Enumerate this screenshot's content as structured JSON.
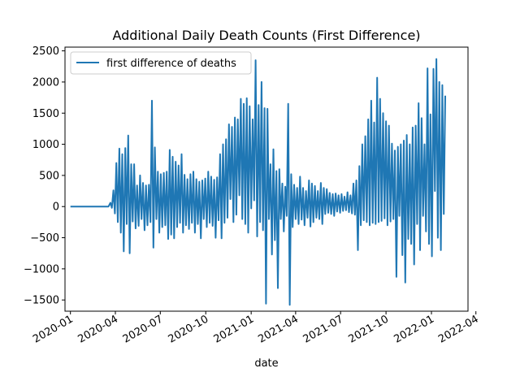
{
  "chart_data": {
    "type": "line",
    "title": "Additional Daily Death Counts (First Difference)",
    "xlabel": "date",
    "ylabel": "",
    "x_range": [
      "2019-12-21",
      "2022-03-16"
    ],
    "ylim": [
      -1680,
      2560
    ],
    "x_ticks": [
      {
        "date": "2020-01-01",
        "label": "2020-01"
      },
      {
        "date": "2020-04-01",
        "label": "2020-04"
      },
      {
        "date": "2020-07-01",
        "label": "2020-07"
      },
      {
        "date": "2020-10-01",
        "label": "2020-10"
      },
      {
        "date": "2021-01-01",
        "label": "2021-01"
      },
      {
        "date": "2021-04-01",
        "label": "2021-04"
      },
      {
        "date": "2021-07-01",
        "label": "2021-07"
      },
      {
        "date": "2021-10-01",
        "label": "2021-10"
      },
      {
        "date": "2022-01-01",
        "label": "2022-01"
      },
      {
        "date": "2022-04-01",
        "label": "2022-04"
      }
    ],
    "y_ticks": [
      -1500,
      -1000,
      -500,
      0,
      500,
      1000,
      1500,
      2000,
      2500
    ],
    "legend": {
      "position": "top-left"
    },
    "grid": false,
    "series": [
      {
        "name": "first difference of deaths",
        "color": "#1f77b4",
        "points": [
          [
            "2020-01-01",
            0
          ],
          [
            "2020-02-01",
            0
          ],
          [
            "2020-03-01",
            0
          ],
          [
            "2020-03-18",
            0
          ],
          [
            "2020-03-22",
            60
          ],
          [
            "2020-03-25",
            -20
          ],
          [
            "2020-03-28",
            260
          ],
          [
            "2020-03-31",
            -110
          ],
          [
            "2020-04-03",
            700
          ],
          [
            "2020-04-06",
            -250
          ],
          [
            "2020-04-09",
            930
          ],
          [
            "2020-04-12",
            -420
          ],
          [
            "2020-04-15",
            840
          ],
          [
            "2020-04-18",
            -720
          ],
          [
            "2020-04-21",
            940
          ],
          [
            "2020-04-24",
            -280
          ],
          [
            "2020-04-27",
            1140
          ],
          [
            "2020-04-30",
            -750
          ],
          [
            "2020-05-03",
            680
          ],
          [
            "2020-05-06",
            -240
          ],
          [
            "2020-05-09",
            680
          ],
          [
            "2020-05-12",
            -350
          ],
          [
            "2020-05-15",
            340
          ],
          [
            "2020-05-18",
            -310
          ],
          [
            "2020-05-21",
            500
          ],
          [
            "2020-05-24",
            -200
          ],
          [
            "2020-05-27",
            380
          ],
          [
            "2020-05-30",
            -380
          ],
          [
            "2020-06-02",
            340
          ],
          [
            "2020-06-05",
            -300
          ],
          [
            "2020-06-08",
            350
          ],
          [
            "2020-06-11",
            -250
          ],
          [
            "2020-06-14",
            1700
          ],
          [
            "2020-06-17",
            -660
          ],
          [
            "2020-06-20",
            950
          ],
          [
            "2020-06-23",
            -200
          ],
          [
            "2020-06-26",
            560
          ],
          [
            "2020-06-29",
            -420
          ],
          [
            "2020-07-02",
            520
          ],
          [
            "2020-07-05",
            -330
          ],
          [
            "2020-07-08",
            540
          ],
          [
            "2020-07-11",
            -300
          ],
          [
            "2020-07-14",
            560
          ],
          [
            "2020-07-17",
            -520
          ],
          [
            "2020-07-20",
            910
          ],
          [
            "2020-07-23",
            -450
          ],
          [
            "2020-07-26",
            800
          ],
          [
            "2020-07-29",
            -510
          ],
          [
            "2020-08-01",
            720
          ],
          [
            "2020-08-04",
            -330
          ],
          [
            "2020-08-07",
            660
          ],
          [
            "2020-08-10",
            -260
          ],
          [
            "2020-08-13",
            840
          ],
          [
            "2020-08-16",
            -420
          ],
          [
            "2020-08-19",
            510
          ],
          [
            "2020-08-22",
            -300
          ],
          [
            "2020-08-25",
            440
          ],
          [
            "2020-08-28",
            -360
          ],
          [
            "2020-08-31",
            520
          ],
          [
            "2020-09-03",
            -260
          ],
          [
            "2020-09-06",
            560
          ],
          [
            "2020-09-09",
            -420
          ],
          [
            "2020-09-12",
            440
          ],
          [
            "2020-09-15",
            -280
          ],
          [
            "2020-09-18",
            400
          ],
          [
            "2020-09-21",
            -510
          ],
          [
            "2020-09-24",
            420
          ],
          [
            "2020-09-27",
            -200
          ],
          [
            "2020-09-30",
            450
          ],
          [
            "2020-10-03",
            -330
          ],
          [
            "2020-10-06",
            560
          ],
          [
            "2020-10-09",
            -260
          ],
          [
            "2020-10-12",
            480
          ],
          [
            "2020-10-15",
            -310
          ],
          [
            "2020-10-18",
            430
          ],
          [
            "2020-10-21",
            -500
          ],
          [
            "2020-10-24",
            470
          ],
          [
            "2020-10-27",
            -220
          ],
          [
            "2020-10-30",
            840
          ],
          [
            "2020-11-02",
            -510
          ],
          [
            "2020-11-05",
            1000
          ],
          [
            "2020-11-08",
            -260
          ],
          [
            "2020-11-11",
            1080
          ],
          [
            "2020-11-14",
            -180
          ],
          [
            "2020-11-17",
            1320
          ],
          [
            "2020-11-20",
            120
          ],
          [
            "2020-11-23",
            1280
          ],
          [
            "2020-11-26",
            -250
          ],
          [
            "2020-11-29",
            1430
          ],
          [
            "2020-12-02",
            -130
          ],
          [
            "2020-12-05",
            1400
          ],
          [
            "2020-12-08",
            180
          ],
          [
            "2020-12-11",
            1730
          ],
          [
            "2020-12-14",
            -200
          ],
          [
            "2020-12-17",
            1650
          ],
          [
            "2020-12-20",
            -280
          ],
          [
            "2020-12-23",
            1740
          ],
          [
            "2020-12-26",
            -420
          ],
          [
            "2020-12-29",
            1610
          ],
          [
            "2021-01-01",
            -30
          ],
          [
            "2021-01-04",
            1400
          ],
          [
            "2021-01-07",
            100
          ],
          [
            "2021-01-10",
            2350
          ],
          [
            "2021-01-13",
            -480
          ],
          [
            "2021-01-16",
            1630
          ],
          [
            "2021-01-19",
            -250
          ],
          [
            "2021-01-22",
            2000
          ],
          [
            "2021-01-25",
            -380
          ],
          [
            "2021-01-28",
            1580
          ],
          [
            "2021-01-31",
            -1560
          ],
          [
            "2021-02-03",
            1570
          ],
          [
            "2021-02-06",
            -200
          ],
          [
            "2021-02-09",
            680
          ],
          [
            "2021-02-12",
            -770
          ],
          [
            "2021-02-15",
            920
          ],
          [
            "2021-02-18",
            -540
          ],
          [
            "2021-02-21",
            570
          ],
          [
            "2021-02-24",
            -1310
          ],
          [
            "2021-02-27",
            600
          ],
          [
            "2021-03-02",
            -200
          ],
          [
            "2021-03-05",
            370
          ],
          [
            "2021-03-08",
            -400
          ],
          [
            "2021-03-11",
            320
          ],
          [
            "2021-03-14",
            -150
          ],
          [
            "2021-03-17",
            1650
          ],
          [
            "2021-03-20",
            -1580
          ],
          [
            "2021-03-23",
            520
          ],
          [
            "2021-03-26",
            -330
          ],
          [
            "2021-03-29",
            350
          ],
          [
            "2021-04-01",
            -200
          ],
          [
            "2021-04-04",
            300
          ],
          [
            "2021-04-07",
            -280
          ],
          [
            "2021-04-10",
            480
          ],
          [
            "2021-04-13",
            -210
          ],
          [
            "2021-04-16",
            300
          ],
          [
            "2021-04-19",
            -300
          ],
          [
            "2021-04-22",
            250
          ],
          [
            "2021-04-25",
            -180
          ],
          [
            "2021-04-28",
            420
          ],
          [
            "2021-05-01",
            -320
          ],
          [
            "2021-05-04",
            370
          ],
          [
            "2021-05-07",
            -250
          ],
          [
            "2021-05-10",
            330
          ],
          [
            "2021-05-13",
            -180
          ],
          [
            "2021-05-16",
            250
          ],
          [
            "2021-05-19",
            -200
          ],
          [
            "2021-05-22",
            380
          ],
          [
            "2021-05-25",
            -280
          ],
          [
            "2021-05-28",
            300
          ],
          [
            "2021-05-31",
            -120
          ],
          [
            "2021-06-03",
            280
          ],
          [
            "2021-06-06",
            -100
          ],
          [
            "2021-06-09",
            220
          ],
          [
            "2021-06-12",
            -120
          ],
          [
            "2021-06-15",
            200
          ],
          [
            "2021-06-18",
            -150
          ],
          [
            "2021-06-21",
            210
          ],
          [
            "2021-06-24",
            -80
          ],
          [
            "2021-06-27",
            180
          ],
          [
            "2021-06-30",
            -100
          ],
          [
            "2021-07-03",
            200
          ],
          [
            "2021-07-06",
            -70
          ],
          [
            "2021-07-09",
            160
          ],
          [
            "2021-07-12",
            -60
          ],
          [
            "2021-07-15",
            230
          ],
          [
            "2021-07-18",
            -90
          ],
          [
            "2021-07-21",
            180
          ],
          [
            "2021-07-24",
            -110
          ],
          [
            "2021-07-27",
            370
          ],
          [
            "2021-07-30",
            -130
          ],
          [
            "2021-08-02",
            420
          ],
          [
            "2021-08-05",
            -700
          ],
          [
            "2021-08-08",
            650
          ],
          [
            "2021-08-11",
            -300
          ],
          [
            "2021-08-14",
            1000
          ],
          [
            "2021-08-17",
            -220
          ],
          [
            "2021-08-20",
            1130
          ],
          [
            "2021-08-23",
            -250
          ],
          [
            "2021-08-26",
            1400
          ],
          [
            "2021-08-29",
            -300
          ],
          [
            "2021-09-01",
            1700
          ],
          [
            "2021-09-04",
            -260
          ],
          [
            "2021-09-07",
            1350
          ],
          [
            "2021-09-10",
            -280
          ],
          [
            "2021-09-13",
            2070
          ],
          [
            "2021-09-16",
            -250
          ],
          [
            "2021-09-19",
            1730
          ],
          [
            "2021-09-22",
            -230
          ],
          [
            "2021-09-25",
            1500
          ],
          [
            "2021-09-28",
            -190
          ],
          [
            "2021-10-01",
            1370
          ],
          [
            "2021-10-04",
            -300
          ],
          [
            "2021-10-07",
            1300
          ],
          [
            "2021-10-10",
            -240
          ],
          [
            "2021-10-13",
            1010
          ],
          [
            "2021-10-16",
            -200
          ],
          [
            "2021-10-19",
            900
          ],
          [
            "2021-10-22",
            -1130
          ],
          [
            "2021-10-25",
            960
          ],
          [
            "2021-10-28",
            -150
          ],
          [
            "2021-10-31",
            1000
          ],
          [
            "2021-11-03",
            -780
          ],
          [
            "2021-11-06",
            1060
          ],
          [
            "2021-11-09",
            -1220
          ],
          [
            "2021-11-12",
            1150
          ],
          [
            "2021-11-15",
            -520
          ],
          [
            "2021-11-18",
            1000
          ],
          [
            "2021-11-21",
            -600
          ],
          [
            "2021-11-24",
            1270
          ],
          [
            "2021-11-27",
            -930
          ],
          [
            "2021-11-30",
            1300
          ],
          [
            "2021-12-03",
            -280
          ],
          [
            "2021-12-06",
            1660
          ],
          [
            "2021-12-09",
            -700
          ],
          [
            "2021-12-12",
            1420
          ],
          [
            "2021-12-15",
            -150
          ],
          [
            "2021-12-18",
            1000
          ],
          [
            "2021-12-21",
            -400
          ],
          [
            "2021-12-24",
            2220
          ],
          [
            "2021-12-27",
            -600
          ],
          [
            "2021-12-30",
            1480
          ],
          [
            "2022-01-02",
            -800
          ],
          [
            "2022-01-05",
            2210
          ],
          [
            "2022-01-08",
            250
          ],
          [
            "2022-01-11",
            2370
          ],
          [
            "2022-01-14",
            -500
          ],
          [
            "2022-01-17",
            2000
          ],
          [
            "2022-01-20",
            -700
          ],
          [
            "2022-01-23",
            1950
          ],
          [
            "2022-01-26",
            -120
          ],
          [
            "2022-01-29",
            1780
          ]
        ]
      }
    ]
  }
}
